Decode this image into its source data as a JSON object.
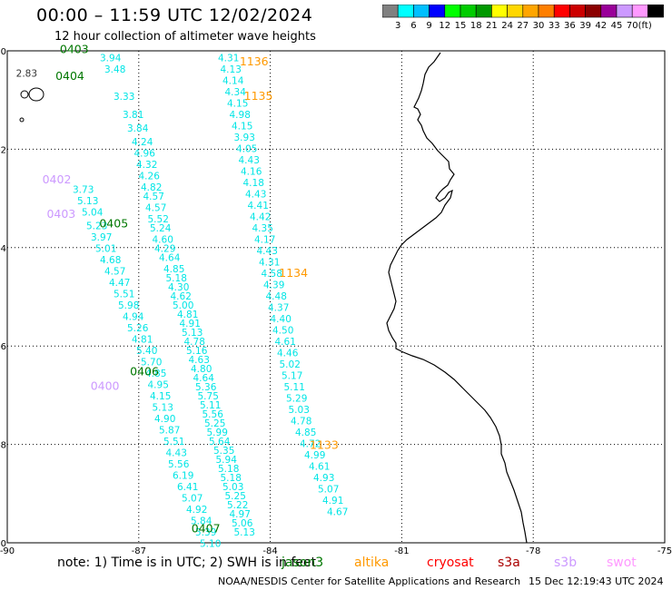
{
  "header": {
    "title": "00:00  –  11:59 UTC 12/02/2024",
    "subtitle": "12 hour collection of altimeter wave heights"
  },
  "colorbar": {
    "ticks": [
      "3",
      "6",
      "9",
      "12",
      "15",
      "18",
      "21",
      "24",
      "27",
      "30",
      "33",
      "36",
      "39",
      "42",
      "45",
      "70"
    ],
    "unit": "(ft)",
    "colors": [
      "#808080",
      "#00ffff",
      "#00bfff",
      "#0000ff",
      "#00ff00",
      "#00cc00",
      "#009900",
      "#ffff00",
      "#ffd700",
      "#ffa500",
      "#ff7f00",
      "#ff0000",
      "#cc0000",
      "#8b0000",
      "#990099",
      "#cc99ff",
      "#ff99ff",
      "#000000"
    ]
  },
  "axes": {
    "x_ticks": [
      "-90",
      "-87",
      "-84",
      "-81",
      "-78",
      "-75"
    ],
    "y_ticks": [
      "0",
      "-2",
      "-4",
      "-6",
      "-8",
      "-10"
    ]
  },
  "tracks": [
    {
      "color": "#00e5e5",
      "points": [
        [
          "3.94",
          2,
          0.15
        ],
        [
          "3.48",
          2.1,
          0.4
        ],
        [
          "3.33",
          2.3,
          1.0
        ],
        [
          "3.81",
          2.5,
          1.4
        ],
        [
          "3.84",
          2.6,
          1.7
        ],
        [
          "4.24",
          2.7,
          2.0
        ],
        [
          "4.96",
          2.75,
          2.25
        ],
        [
          "4.32",
          2.8,
          2.5
        ],
        [
          "4.26",
          2.85,
          2.75
        ],
        [
          "4.82",
          2.9,
          3.0
        ],
        [
          "4.57",
          2.95,
          3.2
        ],
        [
          "4.57",
          3.0,
          3.45
        ],
        [
          "5.52",
          3.05,
          3.7
        ],
        [
          "5.24",
          3.1,
          3.9
        ],
        [
          "4.60",
          3.15,
          4.15
        ],
        [
          "4.29",
          3.2,
          4.35
        ],
        [
          "4.64",
          3.3,
          4.55
        ],
        [
          "4.85",
          3.4,
          4.8
        ],
        [
          "5.18",
          3.45,
          5.0
        ],
        [
          "4.30",
          3.5,
          5.2
        ],
        [
          "4.62",
          3.55,
          5.4
        ],
        [
          "5.00",
          3.6,
          5.6
        ],
        [
          "4.81",
          3.7,
          5.8
        ],
        [
          "4.91",
          3.75,
          6.0
        ],
        [
          "5.13",
          3.8,
          6.2
        ],
        [
          "4.78",
          3.85,
          6.4
        ],
        [
          "5.16",
          3.9,
          6.6
        ],
        [
          "4.63",
          3.95,
          6.8
        ],
        [
          "4.80",
          4.0,
          7.0
        ],
        [
          "4.64",
          4.05,
          7.2
        ],
        [
          "5.36",
          4.1,
          7.4
        ],
        [
          "5.75",
          4.15,
          7.6
        ],
        [
          "5.11",
          4.2,
          7.8
        ],
        [
          "5.56",
          4.25,
          8.0
        ],
        [
          "5.25",
          4.3,
          8.2
        ],
        [
          "5.99",
          4.35,
          8.4
        ],
        [
          "5.64",
          4.4,
          8.6
        ],
        [
          "5.35",
          4.5,
          8.8
        ],
        [
          "5.94",
          4.55,
          9.0
        ],
        [
          "5.18",
          4.6,
          9.2
        ],
        [
          "5.18",
          4.65,
          9.4
        ],
        [
          "5.03",
          4.7,
          9.6
        ],
        [
          "5.25",
          4.75,
          9.8
        ],
        [
          "5.22",
          4.8,
          10.0
        ],
        [
          "4.97",
          4.85,
          10.2
        ],
        [
          "5.06",
          4.9,
          10.4
        ],
        [
          "5.13",
          4.95,
          10.6
        ]
      ]
    },
    {
      "color": "#00e5e5",
      "points": [
        [
          "3.73",
          1.4,
          3.05
        ],
        [
          "5.13",
          1.5,
          3.3
        ],
        [
          "5.04",
          1.6,
          3.55
        ],
        [
          "5.23",
          1.7,
          3.85
        ],
        [
          "3.97",
          1.8,
          4.1
        ],
        [
          "5.01",
          1.9,
          4.35
        ],
        [
          "4.68",
          2.0,
          4.6
        ],
        [
          "4.57",
          2.1,
          4.85
        ],
        [
          "4.47",
          2.2,
          5.1
        ],
        [
          "5.51",
          2.3,
          5.35
        ],
        [
          "5.98",
          2.4,
          5.6
        ],
        [
          "4.94",
          2.5,
          5.85
        ],
        [
          "5.26",
          2.6,
          6.1
        ],
        [
          "4.81",
          2.7,
          6.35
        ],
        [
          "5.40",
          2.8,
          6.6
        ],
        [
          "5.70",
          2.9,
          6.85
        ],
        [
          "4.85",
          3.0,
          7.1
        ],
        [
          "4.95",
          3.05,
          7.35
        ],
        [
          "4.15",
          3.1,
          7.6
        ],
        [
          "5.13",
          3.15,
          7.85
        ],
        [
          "4.90",
          3.2,
          8.1
        ],
        [
          "5.87",
          3.3,
          8.35
        ],
        [
          "5.51",
          3.4,
          8.6
        ],
        [
          "4.43",
          3.45,
          8.85
        ],
        [
          "5.56",
          3.5,
          9.1
        ],
        [
          "6.19",
          3.6,
          9.35
        ],
        [
          "6.41",
          3.7,
          9.6
        ],
        [
          "5.07",
          3.8,
          9.85
        ],
        [
          "4.92",
          3.9,
          10.1
        ],
        [
          "5.84",
          4.0,
          10.35
        ],
        [
          "5.39",
          4.1,
          10.6
        ],
        [
          "5.10",
          4.2,
          10.85
        ]
      ]
    },
    {
      "color": "#00e5e5",
      "points": [
        [
          "4.31",
          4.6,
          0.15
        ],
        [
          "4.13",
          4.65,
          0.4
        ],
        [
          "4.14",
          4.7,
          0.65
        ],
        [
          "4.34",
          4.75,
          0.9
        ],
        [
          "4.15",
          4.8,
          1.15
        ],
        [
          "4.98",
          4.85,
          1.4
        ],
        [
          "4.15",
          4.9,
          1.65
        ],
        [
          "3.93",
          4.95,
          1.9
        ],
        [
          "4.05",
          5.0,
          2.15
        ],
        [
          "4.43",
          5.05,
          2.4
        ],
        [
          "4.16",
          5.1,
          2.65
        ],
        [
          "4.18",
          5.15,
          2.9
        ],
        [
          "4.43",
          5.2,
          3.15
        ],
        [
          "4.41",
          5.25,
          3.4
        ],
        [
          "4.42",
          5.3,
          3.65
        ],
        [
          "4.35",
          5.35,
          3.9
        ],
        [
          "4.17",
          5.4,
          4.15
        ],
        [
          "4.43",
          5.45,
          4.4
        ],
        [
          "4.31",
          5.5,
          4.65
        ],
        [
          "4.58",
          5.55,
          4.9
        ],
        [
          "4.39",
          5.6,
          5.15
        ],
        [
          "4.48",
          5.65,
          5.4
        ],
        [
          "4.37",
          5.7,
          5.65
        ],
        [
          "4.40",
          5.75,
          5.9
        ],
        [
          "4.50",
          5.8,
          6.15
        ],
        [
          "4.61",
          5.85,
          6.4
        ],
        [
          "4.46",
          5.9,
          6.65
        ],
        [
          "5.02",
          5.95,
          6.9
        ],
        [
          "5.17",
          6.0,
          7.15
        ],
        [
          "5.11",
          6.05,
          7.4
        ],
        [
          "5.29",
          6.1,
          7.65
        ],
        [
          "5.03",
          6.15,
          7.9
        ],
        [
          "4.78",
          6.2,
          8.15
        ],
        [
          "4.85",
          6.3,
          8.4
        ],
        [
          "4.72",
          6.4,
          8.65
        ],
        [
          "4.99",
          6.5,
          8.9
        ],
        [
          "4.61",
          6.6,
          9.15
        ],
        [
          "4.93",
          6.7,
          9.4
        ],
        [
          "5.07",
          6.8,
          9.65
        ],
        [
          "4.91",
          6.9,
          9.9
        ],
        [
          "4.67",
          7.0,
          10.15
        ]
      ]
    }
  ],
  "time_labels": [
    {
      "text": "0403",
      "lon": -88.8,
      "lat": 0.05,
      "color": "#007700"
    },
    {
      "text": "0404",
      "lon": -88.9,
      "lat": -0.5,
      "color": "#007700"
    },
    {
      "text": "0402",
      "lon": -89.2,
      "lat": -2.6,
      "color": "#cc99ff"
    },
    {
      "text": "0403",
      "lon": -89.1,
      "lat": -3.3,
      "color": "#cc99ff"
    },
    {
      "text": "0405",
      "lon": -87.9,
      "lat": -3.5,
      "color": "#007700"
    },
    {
      "text": "0406",
      "lon": -87.2,
      "lat": -6.5,
      "color": "#007700"
    },
    {
      "text": "0400",
      "lon": -88.1,
      "lat": -6.8,
      "color": "#cc99ff"
    },
    {
      "text": "0407",
      "lon": -85.8,
      "lat": -9.7,
      "color": "#007700"
    },
    {
      "text": "1136",
      "lon": -84.7,
      "lat": -0.2,
      "color": "#ff9900"
    },
    {
      "text": "1135",
      "lon": -84.6,
      "lat": -0.9,
      "color": "#ff9900"
    },
    {
      "text": "1134",
      "lon": -83.8,
      "lat": -4.5,
      "color": "#ff9900"
    },
    {
      "text": "1133",
      "lon": -83.1,
      "lat": -8.0,
      "color": "#ff9900"
    }
  ],
  "stray_labels": [
    {
      "text": "2.83",
      "lon": -89.8,
      "lat": -0.45,
      "color": "#333333"
    }
  ],
  "footer": {
    "note": "note:  1) Time is in UTC; 2) SWH is in feet",
    "satellites": [
      {
        "name": "jason3",
        "color": "#007700"
      },
      {
        "name": "altika",
        "color": "#ff9900"
      },
      {
        "name": "cryosat",
        "color": "#ff0000"
      },
      {
        "name": "s3a",
        "color": "#aa0000"
      },
      {
        "name": "s3b",
        "color": "#cc99ff"
      },
      {
        "name": "swot",
        "color": "#ff99ff"
      }
    ],
    "credit": "NOAA/NESDIS Center for Satellite Applications and Research",
    "timestamp": "15 Dec 12:19:43 UTC 2024"
  }
}
